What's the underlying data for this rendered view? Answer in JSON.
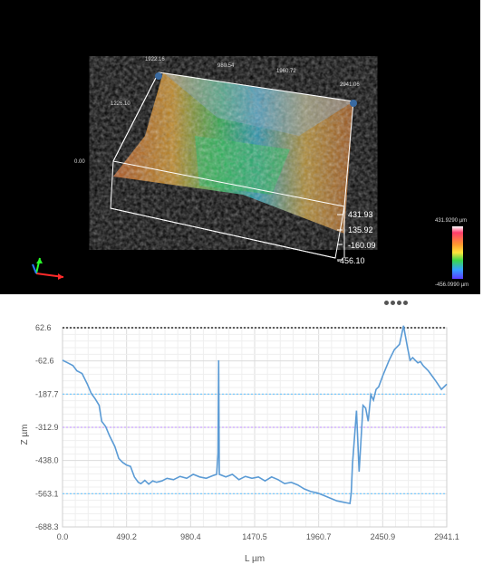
{
  "viewer": {
    "axis_top_labels": [
      "1922.16",
      "980.54",
      "1960.72",
      "2941.06"
    ],
    "depth_label": "1226.10",
    "origin_label": "0.00",
    "z_scale_labels": [
      "431.93",
      "135.92",
      "-160.09",
      "-456.10"
    ],
    "color_scale": {
      "max_label": "431.9290 µm",
      "min_label": "-456.0990 µm",
      "colors": [
        "#ffffff",
        "#ff3b6b",
        "#ff9a2e",
        "#ffe53b",
        "#39d84a",
        "#34a3ff",
        "#5b3bff"
      ]
    },
    "axes_gizmo": {
      "x_color": "#ff2a2a",
      "y_color": "#2aff2a",
      "z_color": "#2a7bff"
    }
  },
  "pager": {
    "count": 4
  },
  "chart_data": {
    "type": "line",
    "xlabel": "L µm",
    "ylabel": "Z µm",
    "xlim": [
      0.0,
      2941.1
    ],
    "ylim": [
      -688.3,
      62.6
    ],
    "x_ticks": [
      "0.0",
      "490.2",
      "980.4",
      "1470.5",
      "1960.7",
      "2450.9",
      "2941.1"
    ],
    "y_ticks": [
      "62.6",
      "-62.6",
      "-187.7",
      "-312.9",
      "-438.0",
      "-563.1",
      "-688.3"
    ],
    "line_color": "#5b9bd5",
    "reference_lines": [
      {
        "value": 62.6,
        "color": "#000000"
      },
      {
        "value": -187.7,
        "color": "#6ec6ff"
      },
      {
        "value": -312.9,
        "color": "#c9a2ff"
      },
      {
        "value": -563.1,
        "color": "#6ec6ff"
      }
    ],
    "x": [
      0,
      40,
      80,
      110,
      150,
      190,
      220,
      250,
      280,
      300,
      330,
      360,
      400,
      430,
      460,
      490,
      520,
      550,
      580,
      600,
      630,
      660,
      690,
      720,
      760,
      800,
      850,
      900,
      950,
      1000,
      1050,
      1100,
      1150,
      1180,
      1190,
      1195,
      1200,
      1250,
      1300,
      1350,
      1400,
      1450,
      1500,
      1550,
      1600,
      1650,
      1700,
      1750,
      1800,
      1850,
      1900,
      1950,
      2000,
      2050,
      2100,
      2150,
      2200,
      2210,
      2220,
      2250,
      2270,
      2280,
      2300,
      2320,
      2340,
      2360,
      2380,
      2400,
      2420,
      2450,
      2500,
      2540,
      2580,
      2610,
      2640,
      2660,
      2680,
      2700,
      2720,
      2740,
      2760,
      2780,
      2800,
      2830,
      2860,
      2900,
      2941
    ],
    "y": [
      -60,
      -70,
      -80,
      -100,
      -110,
      -150,
      -185,
      -205,
      -230,
      -290,
      -310,
      -345,
      -385,
      -430,
      -445,
      -455,
      -460,
      -500,
      -520,
      -525,
      -513,
      -527,
      -515,
      -520,
      -515,
      -505,
      -510,
      -498,
      -505,
      -490,
      -500,
      -505,
      -495,
      -490,
      -410,
      -60,
      -490,
      -500,
      -490,
      -510,
      -498,
      -505,
      -500,
      -515,
      -500,
      -510,
      -525,
      -520,
      -530,
      -545,
      -555,
      -560,
      -570,
      -580,
      -590,
      -595,
      -600,
      -560,
      -450,
      -250,
      -480,
      -400,
      -230,
      -240,
      -290,
      -190,
      -210,
      -170,
      -160,
      -120,
      -60,
      -20,
      0,
      70,
      -10,
      -60,
      -50,
      -60,
      -70,
      -65,
      -80,
      -90,
      -100,
      -120,
      -140,
      -170,
      -150
    ]
  }
}
